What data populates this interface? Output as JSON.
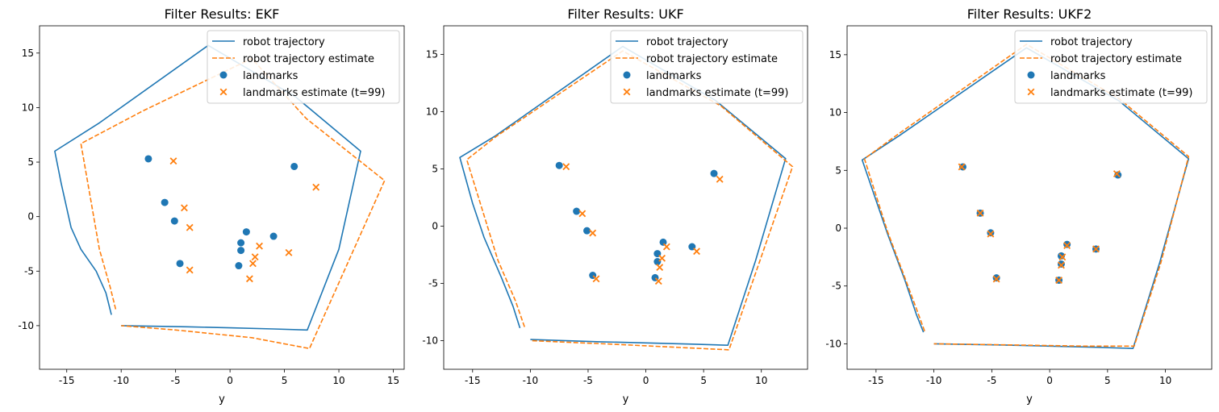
{
  "chart_data": [
    {
      "type": "line",
      "title": "Filter Results: EKF",
      "xlabel": "y",
      "ylabel": "",
      "xlim": [
        -17.5,
        16.0
      ],
      "ylim": [
        -14.0,
        17.5
      ],
      "xticks": [
        -15,
        -10,
        -5,
        0,
        5,
        10,
        15
      ],
      "yticks": [
        -10,
        -5,
        0,
        5,
        10,
        15
      ],
      "grid": false,
      "legend_position": "top-right",
      "legend": [
        "robot trajectory",
        "robot trajectory estimate",
        "landmarks",
        "landmarks estimate (t=99)"
      ],
      "series": [
        {
          "name": "robot trajectory",
          "style": "solid",
          "color": "#1f77b4",
          "points": [
            [
              -10.9,
              -9.0
            ],
            [
              -11.4,
              -7.0
            ],
            [
              -12.3,
              -5.0
            ],
            [
              -13.7,
              -3.0
            ],
            [
              -14.6,
              -1.0
            ],
            [
              -15.5,
              3.0
            ],
            [
              -16.1,
              6.0
            ],
            [
              -12.0,
              8.6
            ],
            [
              -2.0,
              15.7
            ],
            [
              6.0,
              11.0
            ],
            [
              12.0,
              6.0
            ],
            [
              10.0,
              -3.0
            ],
            [
              7.1,
              -10.4
            ],
            [
              4.0,
              -10.3
            ],
            [
              0.0,
              -10.2
            ],
            [
              -4.0,
              -10.1
            ],
            [
              -10.0,
              -10.0
            ]
          ]
        },
        {
          "name": "robot trajectory estimate",
          "style": "dashed",
          "color": "#ff7f0e",
          "points": [
            [
              -10.5,
              -8.5
            ],
            [
              -11.0,
              -6.5
            ],
            [
              -12.0,
              -3.0
            ],
            [
              -13.7,
              6.7
            ],
            [
              -8.0,
              9.7
            ],
            [
              2.0,
              14.5
            ],
            [
              7.0,
              9.0
            ],
            [
              14.2,
              3.3
            ],
            [
              7.3,
              -12.1
            ],
            [
              2.0,
              -11.1
            ],
            [
              -5.0,
              -10.4
            ],
            [
              -10.0,
              -10.0
            ]
          ]
        }
      ],
      "landmarks": [
        [
          -7.5,
          5.3
        ],
        [
          -6.0,
          1.3
        ],
        [
          -5.1,
          -0.4
        ],
        [
          -4.6,
          -4.3
        ],
        [
          1.0,
          -2.4
        ],
        [
          1.0,
          -3.1
        ],
        [
          0.8,
          -4.5
        ],
        [
          1.5,
          -1.4
        ],
        [
          4.0,
          -1.8
        ],
        [
          5.9,
          4.6
        ]
      ],
      "landmarks_estimate": [
        [
          -5.2,
          5.1
        ],
        [
          -4.2,
          0.8
        ],
        [
          -3.7,
          -1.0
        ],
        [
          -3.7,
          -4.9
        ],
        [
          2.7,
          -2.7
        ],
        [
          2.3,
          -3.7
        ],
        [
          2.1,
          -4.3
        ],
        [
          1.8,
          -5.7
        ],
        [
          5.4,
          -3.3
        ],
        [
          7.9,
          2.7
        ]
      ]
    },
    {
      "type": "line",
      "title": "Filter Results: UKF",
      "xlabel": "y",
      "ylabel": "",
      "xlim": [
        -17.5,
        14.0
      ],
      "ylim": [
        -12.5,
        17.5
      ],
      "xticks": [
        -15,
        -10,
        -5,
        0,
        5,
        10
      ],
      "yticks": [
        -10,
        -5,
        0,
        5,
        10,
        15
      ],
      "grid": false,
      "legend_position": "top-right",
      "legend": [
        "robot trajectory",
        "robot trajectory estimate",
        "landmarks",
        "landmarks estimate (t=99)"
      ],
      "series": [
        {
          "name": "robot trajectory",
          "style": "solid",
          "color": "#1f77b4",
          "points": [
            [
              -10.9,
              -8.9
            ],
            [
              -11.5,
              -7.0
            ],
            [
              -12.5,
              -4.5
            ],
            [
              -14.0,
              -1.0
            ],
            [
              -15.0,
              2.0
            ],
            [
              -16.1,
              6.0
            ],
            [
              -13.0,
              7.9
            ],
            [
              -2.0,
              15.7
            ],
            [
              6.0,
              11.0
            ],
            [
              12.1,
              5.9
            ],
            [
              9.5,
              -3.0
            ],
            [
              7.1,
              -10.4
            ],
            [
              4.0,
              -10.3
            ],
            [
              0.0,
              -10.2
            ],
            [
              -4.0,
              -10.1
            ],
            [
              -10.0,
              -9.9
            ]
          ]
        },
        {
          "name": "robot trajectory estimate",
          "style": "dashed",
          "color": "#ff7f0e",
          "points": [
            [
              -10.5,
              -8.8
            ],
            [
              -11.3,
              -6.5
            ],
            [
              -12.8,
              -3.0
            ],
            [
              -15.5,
              5.8
            ],
            [
              -13.0,
              7.8
            ],
            [
              -2.0,
              15.3
            ],
            [
              6.5,
              10.5
            ],
            [
              12.7,
              5.2
            ],
            [
              7.2,
              -10.8
            ],
            [
              3.0,
              -10.6
            ],
            [
              -3.0,
              -10.3
            ],
            [
              -10.0,
              -10.0
            ]
          ]
        }
      ],
      "landmarks": [
        [
          -7.5,
          5.3
        ],
        [
          -6.0,
          1.3
        ],
        [
          -5.1,
          -0.4
        ],
        [
          -4.6,
          -4.3
        ],
        [
          1.0,
          -2.4
        ],
        [
          1.0,
          -3.1
        ],
        [
          0.8,
          -4.5
        ],
        [
          1.5,
          -1.4
        ],
        [
          4.0,
          -1.8
        ],
        [
          5.9,
          4.6
        ]
      ],
      "landmarks_estimate": [
        [
          -6.9,
          5.2
        ],
        [
          -5.5,
          1.1
        ],
        [
          -4.6,
          -0.6
        ],
        [
          -4.3,
          -4.6
        ],
        [
          1.8,
          -1.8
        ],
        [
          1.4,
          -2.8
        ],
        [
          1.2,
          -3.6
        ],
        [
          1.1,
          -4.8
        ],
        [
          4.4,
          -2.2
        ],
        [
          6.4,
          4.1
        ]
      ]
    },
    {
      "type": "line",
      "title": "Filter Results: UKF2",
      "xlabel": "y",
      "ylabel": "",
      "xlim": [
        -17.5,
        14.0
      ],
      "ylim": [
        -12.2,
        17.5
      ],
      "xticks": [
        -15,
        -10,
        -5,
        0,
        5,
        10
      ],
      "yticks": [
        -10,
        -5,
        0,
        5,
        10,
        15
      ],
      "grid": false,
      "legend_position": "top-right",
      "legend": [
        "robot trajectory",
        "robot trajectory estimate",
        "landmarks",
        "landmarks estimate (t=99)"
      ],
      "series": [
        {
          "name": "robot trajectory",
          "style": "solid",
          "color": "#1f77b4",
          "points": [
            [
              -10.9,
              -9.0
            ],
            [
              -11.5,
              -7.5
            ],
            [
              -12.5,
              -4.5
            ],
            [
              -14.0,
              -0.5
            ],
            [
              -16.2,
              5.9
            ],
            [
              -13.0,
              8.0
            ],
            [
              -2.0,
              15.6
            ],
            [
              6.0,
              11.0
            ],
            [
              12.0,
              6.0
            ],
            [
              9.5,
              -3.0
            ],
            [
              7.2,
              -10.4
            ],
            [
              4.0,
              -10.3
            ],
            [
              0.0,
              -10.2
            ],
            [
              -4.0,
              -10.1
            ],
            [
              -10.0,
              -10.0
            ]
          ]
        },
        {
          "name": "robot trajectory estimate",
          "style": "dashed",
          "color": "#ff7f0e",
          "points": [
            [
              -10.8,
              -8.9
            ],
            [
              -11.5,
              -7.0
            ],
            [
              -12.5,
              -4.3
            ],
            [
              -14.0,
              -0.3
            ],
            [
              -16.0,
              6.0
            ],
            [
              -13.0,
              8.2
            ],
            [
              -2.0,
              15.9
            ],
            [
              6.0,
              11.2
            ],
            [
              12.0,
              6.2
            ],
            [
              9.6,
              -3.0
            ],
            [
              7.3,
              -10.2
            ],
            [
              3.0,
              -10.2
            ],
            [
              -3.0,
              -10.1
            ],
            [
              -10.0,
              -10.0
            ]
          ]
        }
      ],
      "landmarks": [
        [
          -7.5,
          5.3
        ],
        [
          -6.0,
          1.3
        ],
        [
          -5.1,
          -0.4
        ],
        [
          -4.6,
          -4.3
        ],
        [
          1.0,
          -2.4
        ],
        [
          1.0,
          -3.1
        ],
        [
          0.8,
          -4.5
        ],
        [
          1.5,
          -1.4
        ],
        [
          4.0,
          -1.8
        ],
        [
          5.9,
          4.6
        ]
      ],
      "landmarks_estimate": [
        [
          -7.6,
          5.3
        ],
        [
          -6.0,
          1.3
        ],
        [
          -5.1,
          -0.5
        ],
        [
          -4.6,
          -4.4
        ],
        [
          1.1,
          -2.5
        ],
        [
          1.0,
          -3.2
        ],
        [
          0.8,
          -4.5
        ],
        [
          1.5,
          -1.5
        ],
        [
          4.0,
          -1.8
        ],
        [
          5.8,
          4.7
        ]
      ]
    }
  ]
}
